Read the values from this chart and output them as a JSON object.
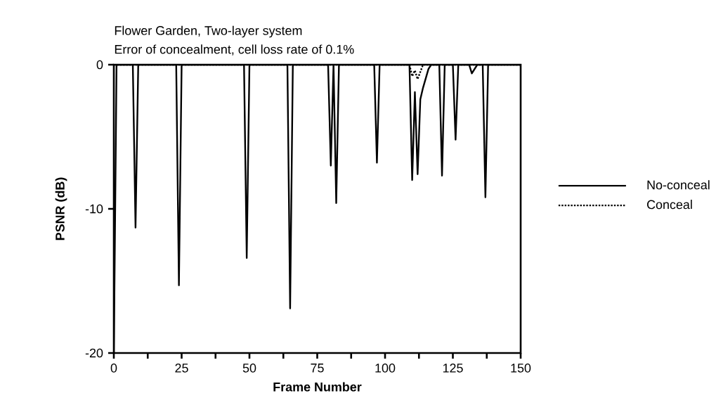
{
  "chart_data": {
    "type": "line",
    "title": "Flower Garden, Two-layer system",
    "subtitle": "Error of concealment, cell loss rate of 0.1%",
    "xlabel": "Frame Number",
    "ylabel": "PSNR  (dB)",
    "xlim": [
      0,
      150
    ],
    "ylim": [
      -20,
      0
    ],
    "xticks": [
      0,
      {
        "value": 12.5,
        "label": null
      },
      25,
      {
        "value": 37.5,
        "label": null
      },
      50,
      {
        "value": 62.5,
        "label": null
      },
      75,
      {
        "value": 87.5,
        "label": null
      },
      100,
      {
        "value": 112.5,
        "label": null
      },
      125,
      {
        "value": 137.5,
        "label": null
      },
      150
    ],
    "yticks": [
      -20,
      -10,
      0
    ],
    "legend": "right",
    "series": [
      {
        "name": "No-conceal",
        "color": "#000000",
        "line_style": "solid",
        "x": [
          0,
          1,
          7,
          8,
          9,
          23,
          24,
          25,
          48,
          49,
          50,
          64,
          65,
          66,
          79,
          80,
          81,
          82,
          83,
          96,
          97,
          98,
          109,
          110,
          111,
          112,
          113,
          114,
          116,
          117,
          120,
          121,
          122,
          125,
          126,
          127,
          131,
          132,
          134,
          136,
          137,
          138,
          150
        ],
        "values": [
          -20,
          0,
          0,
          -11.3,
          0,
          0,
          -15.3,
          0,
          0,
          -13.4,
          0,
          0,
          -16.9,
          0,
          0,
          -7.0,
          0,
          -9.6,
          0,
          0,
          -6.8,
          0,
          0,
          -8.0,
          -1.9,
          -7.6,
          -2.4,
          -1.6,
          -0.3,
          0,
          0,
          -7.7,
          0,
          0,
          -5.2,
          0,
          0,
          -0.6,
          0,
          0,
          -9.2,
          0,
          0
        ]
      },
      {
        "name": "Conceal",
        "color": "#000000",
        "line_style": "dotted",
        "x": [
          0,
          109,
          110,
          111,
          112,
          113,
          114,
          150
        ],
        "values": [
          0,
          0,
          -0.8,
          -0.4,
          -1.0,
          -0.5,
          0,
          0
        ]
      }
    ]
  }
}
